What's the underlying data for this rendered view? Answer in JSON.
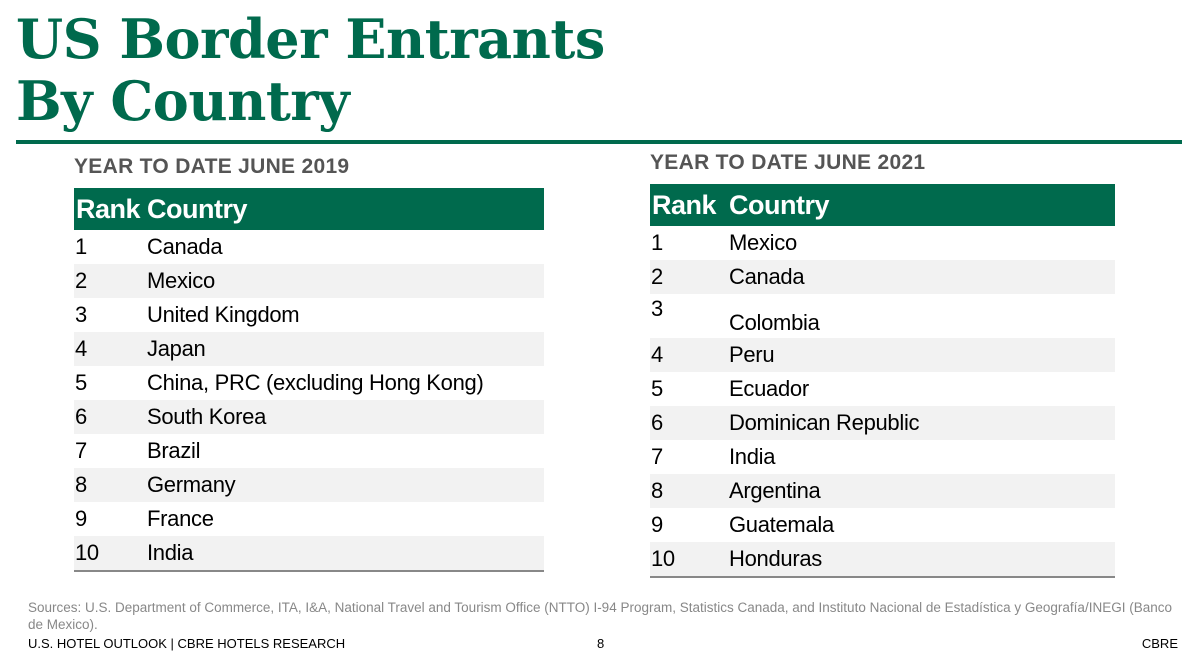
{
  "title": {
    "line1": "US Border Entrants",
    "line2": "By Country"
  },
  "tables": [
    {
      "subtitle": "YEAR TO DATE JUNE 2019",
      "header": {
        "rank": "Rank",
        "country": "Country"
      },
      "rows": [
        {
          "rank": "1",
          "country": "Canada"
        },
        {
          "rank": "2",
          "country": "Mexico"
        },
        {
          "rank": "3",
          "country": "United Kingdom"
        },
        {
          "rank": "4",
          "country": "Japan"
        },
        {
          "rank": "5",
          "country": "China, PRC (excluding Hong Kong)"
        },
        {
          "rank": "6",
          "country": "South Korea"
        },
        {
          "rank": "7",
          "country": "Brazil"
        },
        {
          "rank": "8",
          "country": "Germany"
        },
        {
          "rank": "9",
          "country": "France"
        },
        {
          "rank": "10",
          "country": "India"
        }
      ]
    },
    {
      "subtitle": "YEAR TO DATE JUNE 2021",
      "header": {
        "rank": "Rank",
        "country": "Country"
      },
      "rows": [
        {
          "rank": "1",
          "country": "Mexico"
        },
        {
          "rank": "2",
          "country": "Canada"
        },
        {
          "rank": "3",
          "country": "Colombia"
        },
        {
          "rank": "4",
          "country": "Peru"
        },
        {
          "rank": "5",
          "country": "Ecuador"
        },
        {
          "rank": "6",
          "country": "Dominican Republic"
        },
        {
          "rank": "7",
          "country": "India"
        },
        {
          "rank": "8",
          "country": "Argentina"
        },
        {
          "rank": "9",
          "country": "Guatemala"
        },
        {
          "rank": "10",
          "country": "Honduras"
        }
      ]
    }
  ],
  "sources": "Sources: U.S. Department of Commerce, ITA, I&A, National Travel and Tourism Office (NTTO) I-94 Program, Statistics Canada, and Instituto Nacional de Estadística y Geografía/INEGI (Banco de Mexico).",
  "footer": {
    "left": "U.S. HOTEL OUTLOOK | CBRE HOTELS RESEARCH",
    "page": "8",
    "brand": "CBRE"
  },
  "colors": {
    "accent": "#006a4d",
    "row_alt": "#f2f2f2",
    "subtitle": "#555555",
    "sources": "#888888"
  }
}
